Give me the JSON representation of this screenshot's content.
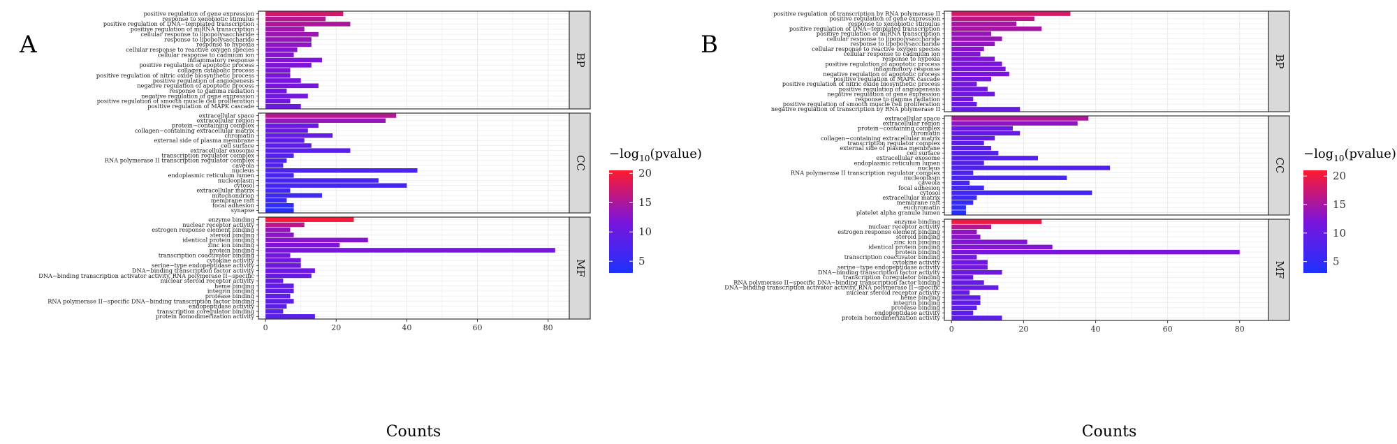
{
  "colors": {
    "low": "#1e32ff",
    "mid": "#7a14dc",
    "high": "#ff1a2e",
    "grid": "#ebebeb",
    "strip": "#d9d9d9",
    "frame": "#333333"
  },
  "chart_data": [
    {
      "type": "bar",
      "orientation": "horizontal",
      "panel_label": "A",
      "xlabel": "Counts",
      "xlim": [
        -2,
        86
      ],
      "xticks": [
        0,
        20,
        40,
        60,
        80
      ],
      "legend_title_prefix": "−log",
      "legend_title_sub": "10",
      "legend_title_suffix": "(pvalue)",
      "legend_range": [
        3,
        20.5
      ],
      "legend_ticks": [
        5,
        10,
        15,
        20
      ],
      "facets": [
        {
          "name": "BP",
          "terms": [
            {
              "term": "positive regulation of gene expression",
              "count": 22,
              "logp": 17.5
            },
            {
              "term": "response to xenobiotic stimulus",
              "count": 17,
              "logp": 15.5
            },
            {
              "term": "positive regulation of DNA−templated transcription",
              "count": 24,
              "logp": 15
            },
            {
              "term": "positive regulation of miRNA transcription",
              "count": 11,
              "logp": 14
            },
            {
              "term": "cellular response to lipopolysaccharide",
              "count": 15,
              "logp": 14
            },
            {
              "term": "response to lipopolysaccharide",
              "count": 13,
              "logp": 13.5
            },
            {
              "term": "response to hypoxia",
              "count": 13,
              "logp": 13
            },
            {
              "term": "cellular response to reactive oxygen species",
              "count": 9,
              "logp": 12.5
            },
            {
              "term": "cellular response to cadmium ion",
              "count": 8,
              "logp": 12.5
            },
            {
              "term": "inflammatory response",
              "count": 16,
              "logp": 12
            },
            {
              "term": "positive regulation of apoptotic process",
              "count": 13,
              "logp": 12
            },
            {
              "term": "collagen catabolic process",
              "count": 7,
              "logp": 12
            },
            {
              "term": "positive regulation of nitric oxide biosynthetic process",
              "count": 7,
              "logp": 11.5
            },
            {
              "term": "positive regulation of angiogenesis",
              "count": 10,
              "logp": 11.5
            },
            {
              "term": "negative regulation of apoptotic process",
              "count": 15,
              "logp": 11.5
            },
            {
              "term": "response to gamma radiation",
              "count": 6,
              "logp": 11
            },
            {
              "term": "negative regulation of gene expression",
              "count": 12,
              "logp": 11
            },
            {
              "term": "positive regulation of smooth muscle cell proliferation",
              "count": 7,
              "logp": 11
            },
            {
              "term": "positive regulation of MAPK cascade",
              "count": 10,
              "logp": 10.5
            }
          ]
        },
        {
          "name": "CC",
          "terms": [
            {
              "term": "extracellular space",
              "count": 37,
              "logp": 15.5
            },
            {
              "term": "extracellular region",
              "count": 34,
              "logp": 13.5
            },
            {
              "term": "protein−containing complex",
              "count": 15,
              "logp": 10
            },
            {
              "term": "collagen−containing extracellular matrix",
              "count": 12,
              "logp": 10
            },
            {
              "term": "chromatin",
              "count": 19,
              "logp": 9.5
            },
            {
              "term": "external side of plasma membrane",
              "count": 11,
              "logp": 9
            },
            {
              "term": "cell surface",
              "count": 13,
              "logp": 9
            },
            {
              "term": "extracellular exosome",
              "count": 24,
              "logp": 8.5
            },
            {
              "term": "transcription regulator complex",
              "count": 8,
              "logp": 8
            },
            {
              "term": "RNA polymerase II transcription regulator complex",
              "count": 6,
              "logp": 7.5
            },
            {
              "term": "caveola",
              "count": 5,
              "logp": 7.5
            },
            {
              "term": "nucleus",
              "count": 43,
              "logp": 7.5
            },
            {
              "term": "endoplasmic reticulum lumen",
              "count": 8,
              "logp": 7
            },
            {
              "term": "nucleoplasm",
              "count": 32,
              "logp": 7
            },
            {
              "term": "cytosol",
              "count": 40,
              "logp": 6.5
            },
            {
              "term": "extracellular matrix",
              "count": 7,
              "logp": 6.5
            },
            {
              "term": "mitochondrion",
              "count": 16,
              "logp": 6
            },
            {
              "term": "membrane raft",
              "count": 6,
              "logp": 5.5
            },
            {
              "term": "focal adhesion",
              "count": 8,
              "logp": 4.5
            },
            {
              "term": "synapse",
              "count": 8,
              "logp": 3.5
            }
          ]
        },
        {
          "name": "MF",
          "terms": [
            {
              "term": "enzyme binding",
              "count": 25,
              "logp": 20
            },
            {
              "term": "nuclear receptor activity",
              "count": 11,
              "logp": 16
            },
            {
              "term": "estrogen response element binding",
              "count": 7,
              "logp": 13.5
            },
            {
              "term": "steroid binding",
              "count": 8,
              "logp": 13
            },
            {
              "term": "identical protein binding",
              "count": 29,
              "logp": 12.5
            },
            {
              "term": "zinc ion binding",
              "count": 21,
              "logp": 12
            },
            {
              "term": "protein binding",
              "count": 82,
              "logp": 11.5
            },
            {
              "term": "transcription coactivator binding",
              "count": 7,
              "logp": 11
            },
            {
              "term": "cytokine activity",
              "count": 10,
              "logp": 11
            },
            {
              "term": "serine−type endopeptidase activity",
              "count": 10,
              "logp": 10.5
            },
            {
              "term": "DNA−binding transcription factor activity",
              "count": 14,
              "logp": 10.5
            },
            {
              "term": "DNA−binding transcription activator activity, RNA polymerase II−specific",
              "count": 13,
              "logp": 10
            },
            {
              "term": "nuclear steroid receptor activity",
              "count": 5,
              "logp": 10
            },
            {
              "term": "heme binding",
              "count": 8,
              "logp": 9.5
            },
            {
              "term": "integrin binding",
              "count": 8,
              "logp": 9.5
            },
            {
              "term": "protease binding",
              "count": 7,
              "logp": 9
            },
            {
              "term": "RNA polymerase II−specific DNA−binding transcription factor binding",
              "count": 8,
              "logp": 9
            },
            {
              "term": "endopeptidase activity",
              "count": 6,
              "logp": 9
            },
            {
              "term": "transcription coregulator binding",
              "count": 5,
              "logp": 8.5
            },
            {
              "term": "protein homodimerization activity",
              "count": 14,
              "logp": 8.5
            }
          ]
        }
      ]
    },
    {
      "type": "bar",
      "orientation": "horizontal",
      "panel_label": "B",
      "xlabel": "Counts",
      "xlim": [
        -2,
        88
      ],
      "xticks": [
        0,
        20,
        40,
        60,
        80
      ],
      "legend_title_prefix": "−log",
      "legend_title_sub": "10",
      "legend_title_suffix": "(pvalue)",
      "legend_range": [
        3,
        21
      ],
      "legend_ticks": [
        5,
        10,
        15,
        20
      ],
      "facets": [
        {
          "name": "BP",
          "terms": [
            {
              "term": "positive regulation of transcription by RNA polymerase II",
              "count": 33,
              "logp": 18
            },
            {
              "term": "positive regulation of gene expression",
              "count": 23,
              "logp": 16.5
            },
            {
              "term": "response to xenobiotic stimulus",
              "count": 18,
              "logp": 15
            },
            {
              "term": "positive regulation of DNA−templated transcription",
              "count": 25,
              "logp": 15
            },
            {
              "term": "positive regulation of miRNA transcription",
              "count": 11,
              "logp": 14
            },
            {
              "term": "cellular response to lipopolysaccharide",
              "count": 14,
              "logp": 14
            },
            {
              "term": "response to lipopolysaccharide",
              "count": 12,
              "logp": 13.5
            },
            {
              "term": "cellular response to reactive oxygen species",
              "count": 9,
              "logp": 13
            },
            {
              "term": "cellular response to cadmium ion",
              "count": 8,
              "logp": 12.5
            },
            {
              "term": "response to hypoxia",
              "count": 12,
              "logp": 12.5
            },
            {
              "term": "positive regulation of apoptotic process",
              "count": 14,
              "logp": 12
            },
            {
              "term": "inflammatory response",
              "count": 15,
              "logp": 12
            },
            {
              "term": "negative regulation of apoptotic process",
              "count": 16,
              "logp": 12
            },
            {
              "term": "positive regulation of MAPK cascade",
              "count": 11,
              "logp": 11.5
            },
            {
              "term": "positive regulation of nitric oxide biosynthetic process",
              "count": 7,
              "logp": 11.5
            },
            {
              "term": "positive regulation of angiogenesis",
              "count": 10,
              "logp": 11
            },
            {
              "term": "negative regulation of gene expression",
              "count": 12,
              "logp": 11
            },
            {
              "term": "response to gamma radiation",
              "count": 6,
              "logp": 11
            },
            {
              "term": "positive regulation of smooth muscle cell proliferation",
              "count": 7,
              "logp": 10.5
            },
            {
              "term": "negative regulation of transcription by RNA polymerase II",
              "count": 19,
              "logp": 10
            }
          ]
        },
        {
          "name": "CC",
          "terms": [
            {
              "term": "extracellular space",
              "count": 38,
              "logp": 15.5
            },
            {
              "term": "extracellular region",
              "count": 35,
              "logp": 13.5
            },
            {
              "term": "protein−containing complex",
              "count": 17,
              "logp": 10.5
            },
            {
              "term": "chromatin",
              "count": 19,
              "logp": 10
            },
            {
              "term": "collagen−containing extracellular matrix",
              "count": 12,
              "logp": 9.5
            },
            {
              "term": "transcription regulator complex",
              "count": 9,
              "logp": 9
            },
            {
              "term": "external side of plasma membrane",
              "count": 11,
              "logp": 9
            },
            {
              "term": "cell surface",
              "count": 13,
              "logp": 8.5
            },
            {
              "term": "extracellular exosome",
              "count": 24,
              "logp": 8.5
            },
            {
              "term": "endoplasmic reticulum lumen",
              "count": 9,
              "logp": 8
            },
            {
              "term": "nucleus",
              "count": 44,
              "logp": 8
            },
            {
              "term": "RNA polymerase II transcription regulator complex",
              "count": 6,
              "logp": 7.5
            },
            {
              "term": "nucleoplasm",
              "count": 32,
              "logp": 7
            },
            {
              "term": "caveola",
              "count": 5,
              "logp": 7
            },
            {
              "term": "focal adhesion",
              "count": 9,
              "logp": 6.5
            },
            {
              "term": "cytosol",
              "count": 39,
              "logp": 6.5
            },
            {
              "term": "extracellular matrix",
              "count": 7,
              "logp": 6
            },
            {
              "term": "membrane raft",
              "count": 6,
              "logp": 5.5
            },
            {
              "term": "euchromatin",
              "count": 4,
              "logp": 4.5
            },
            {
              "term": "platelet alpha granule lumen",
              "count": 4,
              "logp": 4
            }
          ]
        },
        {
          "name": "MF",
          "terms": [
            {
              "term": "enzyme binding",
              "count": 25,
              "logp": 20
            },
            {
              "term": "nuclear receptor activity",
              "count": 11,
              "logp": 16
            },
            {
              "term": "estrogen response element binding",
              "count": 7,
              "logp": 13.5
            },
            {
              "term": "steroid binding",
              "count": 8,
              "logp": 13
            },
            {
              "term": "zinc ion binding",
              "count": 21,
              "logp": 12.5
            },
            {
              "term": "identical protein binding",
              "count": 28,
              "logp": 12.5
            },
            {
              "term": "protein binding",
              "count": 80,
              "logp": 12
            },
            {
              "term": "transcription coactivator binding",
              "count": 7,
              "logp": 11.5
            },
            {
              "term": "cytokine activity",
              "count": 10,
              "logp": 11
            },
            {
              "term": "serine−type endopeptidase activity",
              "count": 10,
              "logp": 11
            },
            {
              "term": "DNA−binding transcription factor activity",
              "count": 14,
              "logp": 10.5
            },
            {
              "term": "transcription coregulator binding",
              "count": 6,
              "logp": 10.5
            },
            {
              "term": "RNA polymerase II−specific DNA−binding transcription factor binding",
              "count": 9,
              "logp": 10
            },
            {
              "term": "DNA−binding transcription activator activity, RNA polymerase II−specific",
              "count": 13,
              "logp": 10
            },
            {
              "term": "nuclear steroid receptor activity",
              "count": 5,
              "logp": 10
            },
            {
              "term": "heme binding",
              "count": 8,
              "logp": 9.5
            },
            {
              "term": "integrin binding",
              "count": 8,
              "logp": 9.5
            },
            {
              "term": "protease binding",
              "count": 7,
              "logp": 9
            },
            {
              "term": "endopeptidase activity",
              "count": 6,
              "logp": 9
            },
            {
              "term": "protein homodimerization activity",
              "count": 14,
              "logp": 9
            }
          ]
        }
      ]
    }
  ]
}
